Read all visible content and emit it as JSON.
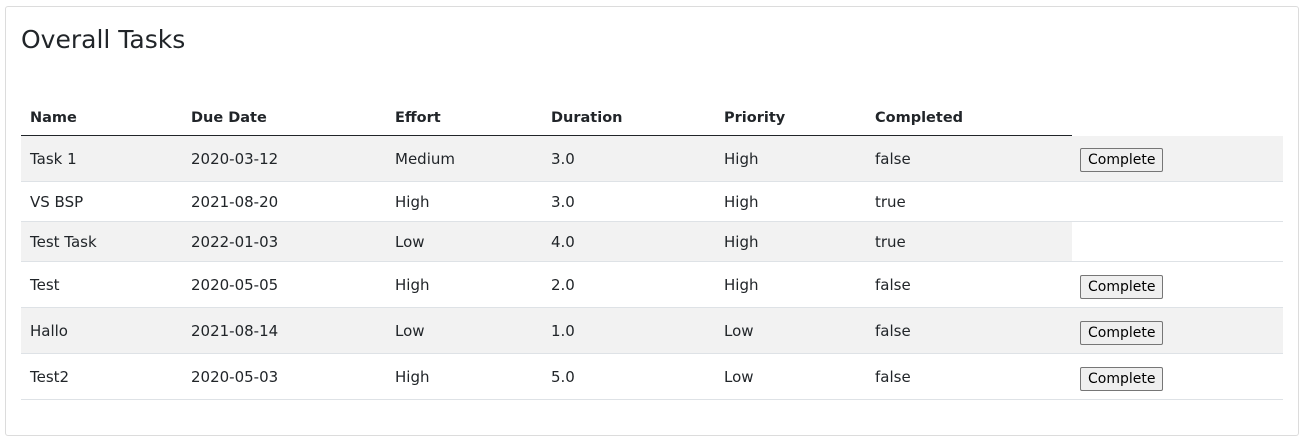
{
  "page": {
    "title": "Overall Tasks"
  },
  "table": {
    "headers": {
      "name": "Name",
      "due_date": "Due Date",
      "effort": "Effort",
      "duration": "Duration",
      "priority": "Priority",
      "completed": "Completed"
    },
    "complete_label": "Complete",
    "rows": [
      {
        "name": "Task 1",
        "due_date": "2020-03-12",
        "effort": "Medium",
        "duration": "3.0",
        "priority": "High",
        "completed": "false"
      },
      {
        "name": "VS BSP",
        "due_date": "2021-08-20",
        "effort": "High",
        "duration": "3.0",
        "priority": "High",
        "completed": "true"
      },
      {
        "name": "Test Task",
        "due_date": "2022-01-03",
        "effort": "Low",
        "duration": "4.0",
        "priority": "High",
        "completed": "true"
      },
      {
        "name": "Test",
        "due_date": "2020-05-05",
        "effort": "High",
        "duration": "2.0",
        "priority": "High",
        "completed": "false"
      },
      {
        "name": "Hallo",
        "due_date": "2021-08-14",
        "effort": "Low",
        "duration": "1.0",
        "priority": "Low",
        "completed": "false"
      },
      {
        "name": "Test2",
        "due_date": "2020-05-03",
        "effort": "High",
        "duration": "5.0",
        "priority": "Low",
        "completed": "false"
      }
    ]
  },
  "colors": {
    "stripe": "#f2f2f2",
    "border": "#dee2e6",
    "text": "#212529"
  }
}
